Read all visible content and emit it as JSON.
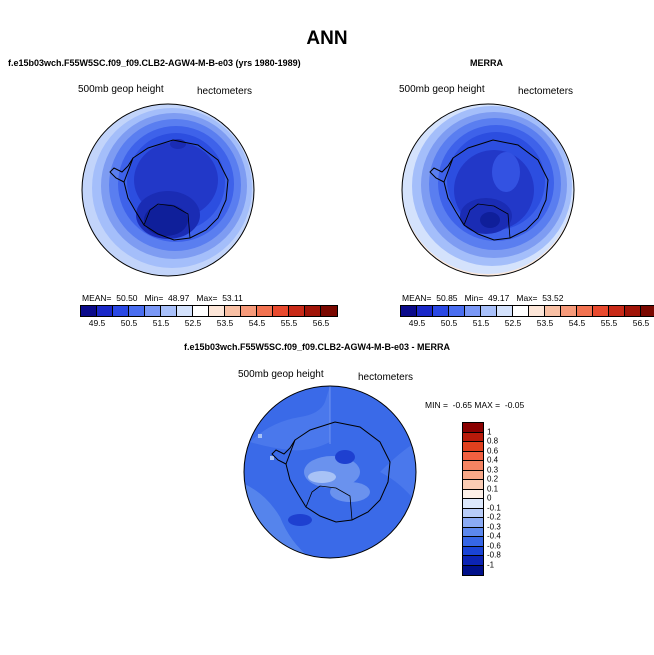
{
  "title": "ANN",
  "panels": [
    {
      "title": "f.e15b03wch.F55W5SC.f09_f09.CLB2-AGW4-M-B-e03 (yrs 1980-1989)",
      "variable": "500mb geop height",
      "units": "hectometers",
      "stats": {
        "mean_label": "MEAN=",
        "mean": "50.50",
        "min_label": "Min=",
        "min": "48.97",
        "max_label": "Max=",
        "max": "53.11"
      }
    },
    {
      "title": "MERRA",
      "variable": "500mb geop height",
      "units": "hectometers",
      "stats": {
        "mean_label": "MEAN=",
        "mean": "50.85",
        "min_label": "Min=",
        "min": "49.17",
        "max_label": "Max=",
        "max": "53.52"
      }
    }
  ],
  "abs_colorbar": {
    "labels": [
      "49.5",
      "50.5",
      "51.5",
      "52.5",
      "53.5",
      "54.5",
      "55.5",
      "56.5"
    ],
    "colors": [
      "#0a0a8a",
      "#1a28c8",
      "#2a48e4",
      "#4a6ef0",
      "#7a98f6",
      "#a8c0fa",
      "#d4e2fc",
      "#ffffff",
      "#fde6d8",
      "#f9c0a4",
      "#f69a7a",
      "#f27250",
      "#e84a2e",
      "#c82a18",
      "#a01408",
      "#7a0800"
    ]
  },
  "diff_panel": {
    "title": "f.e15b03wch.F55W5SC.f09_f09.CLB2-AGW4-M-B-e03 - MERRA",
    "variable": "500mb geop height",
    "units": "hectometers",
    "minmax": {
      "min_label": "MIN =",
      "min": "-0.65",
      "max_label": "MAX =",
      "max": "-0.05"
    }
  },
  "diff_colorbar": {
    "labels": [
      "1",
      "0.8",
      "0.6",
      "0.4",
      "0.3",
      "0.2",
      "0.1",
      "0",
      "-0.1",
      "-0.2",
      "-0.3",
      "-0.4",
      "-0.6",
      "-0.8",
      "-1"
    ],
    "colors": [
      "#8a0000",
      "#b81a0a",
      "#e0401e",
      "#f26040",
      "#f58462",
      "#f8a888",
      "#fbccb4",
      "#fdf0e8",
      "#dce8fc",
      "#b8ccf8",
      "#8aaaf4",
      "#5c88ee",
      "#3666e6",
      "#1a44d6",
      "#0c24b4",
      "#00108a"
    ]
  },
  "map_colors": {
    "ring1": "#c2d4fa",
    "ring2": "#a4befa",
    "ring3": "#7e9cf2",
    "ring4": "#5a7ef0",
    "ring5": "#3e62ea",
    "ring6": "#2c4ee0",
    "inner": "#2238c8",
    "deep": "#0f1f9a",
    "diff_bg": "#3a6ae8",
    "diff_light": "#6a92ee",
    "diff_pale": "#a8c2f6",
    "diff_dark": "#1e40d0"
  }
}
